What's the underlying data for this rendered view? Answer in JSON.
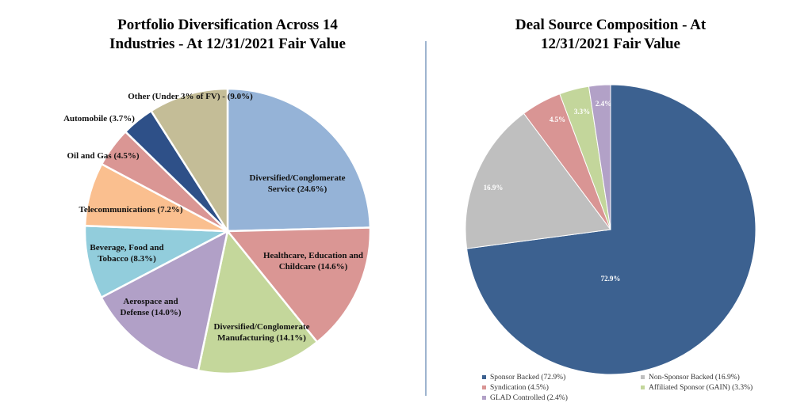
{
  "chart_data": [
    {
      "type": "pie",
      "title": "Portfolio Diversification Across 14 Industries - At 12/31/2021 Fair Value",
      "categories": [
        "Diversified/Conglomerate Service (24.6%)",
        "Healthcare, Education and Childcare (14.6%)",
        "Diversified/Conglomerate Manufacturing (14.1%)",
        "Aerospace and Defense (14.0%)",
        "Beverage, Food and Tobacco (8.3%)",
        "Telecommunications (7.2%)",
        "Oil and Gas (4.5%)",
        "Automobile (3.7%)",
        "Other (Under 3% of FV) - (9.0%)"
      ],
      "values": [
        24.6,
        14.6,
        14.1,
        14.0,
        8.3,
        7.2,
        4.5,
        3.7,
        9.0
      ],
      "colors": [
        "#95b3d7",
        "#da9694",
        "#c4d79b",
        "#b1a0c7",
        "#92cddc",
        "#fabf8f",
        "#da9694",
        "#2e5088",
        "#c4bd97"
      ]
    },
    {
      "type": "pie",
      "title": "Deal Source Composition - At 12/31/2021 Fair Value",
      "categories": [
        "Sponsor Backed (72.9%)",
        "Non-Sponsor Backed (16.9%)",
        "Syndication (4.5%)",
        "Affiliated Sponsor (GAIN) (3.3%)",
        "GLAD Controlled (2.4%)"
      ],
      "values": [
        72.9,
        16.9,
        4.5,
        3.3,
        2.4
      ],
      "value_labels": [
        "72.9%",
        "16.9%",
        "4.5%",
        "3.3%",
        "2.4%"
      ],
      "colors": [
        "#3c6190",
        "#bfbfbf",
        "#d99594",
        "#c3d69b",
        "#b2a1c7"
      ]
    }
  ]
}
